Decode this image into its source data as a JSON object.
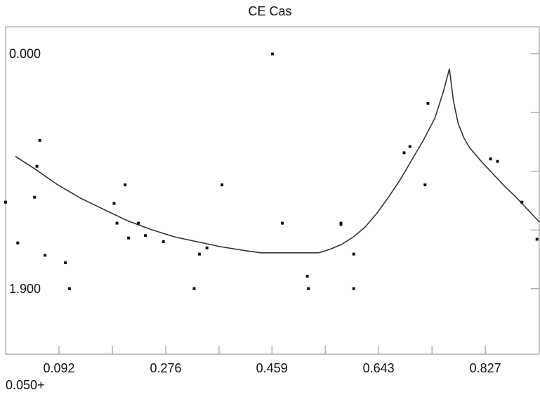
{
  "chart_data": {
    "type": "scatter",
    "title": "CE Cas",
    "xlabel": "",
    "ylabel": "",
    "xlim": [
      0.0,
      0.92
    ],
    "ylim": [
      -0.22,
      2.43
    ],
    "y_inverted": true,
    "x_tick_labels": [
      "0.092",
      "0.276",
      "0.459",
      "0.643",
      "0.827"
    ],
    "x_tick_values": [
      0.092,
      0.276,
      0.459,
      0.643,
      0.827
    ],
    "x_minor_ticks": [
      0.184,
      0.368,
      0.551,
      0.735
    ],
    "y_tick_labels": [
      "0.000",
      "1.900"
    ],
    "y_tick_values": [
      0.0,
      1.9
    ],
    "y_minor_ticks": [
      0.475,
      0.95,
      1.425
    ],
    "corner_note": "0.050+",
    "grid": false,
    "points": {
      "x": [
        0.0,
        0.021,
        0.05,
        0.054,
        0.059,
        0.068,
        0.103,
        0.11,
        0.187,
        0.192,
        0.206,
        0.212,
        0.229,
        0.241,
        0.272,
        0.325,
        0.334,
        0.347,
        0.373,
        0.46,
        0.477,
        0.52,
        0.522,
        0.578,
        0.578,
        0.6,
        0.6,
        0.687,
        0.697,
        0.723,
        0.728,
        0.836,
        0.848,
        0.89,
        0.916
      ],
      "y": [
        1.2,
        1.53,
        1.16,
        0.91,
        0.7,
        1.63,
        1.69,
        1.9,
        1.21,
        1.37,
        1.06,
        1.49,
        1.37,
        1.47,
        1.52,
        1.9,
        1.62,
        1.57,
        1.06,
        0.0,
        1.37,
        1.8,
        1.9,
        1.37,
        1.38,
        1.62,
        1.9,
        0.8,
        0.75,
        1.06,
        0.4,
        0.85,
        0.87,
        1.2,
        1.5
      ]
    },
    "fit_curve": {
      "x": [
        0.017,
        0.05,
        0.09,
        0.13,
        0.17,
        0.21,
        0.25,
        0.29,
        0.33,
        0.37,
        0.41,
        0.44,
        0.48,
        0.52,
        0.54,
        0.56,
        0.58,
        0.6,
        0.62,
        0.64,
        0.66,
        0.68,
        0.7,
        0.72,
        0.74,
        0.755,
        0.765,
        0.772,
        0.78,
        0.79,
        0.8,
        0.82,
        0.84,
        0.86,
        0.88,
        0.9,
        0.92
      ],
      "y": [
        0.83,
        0.93,
        1.06,
        1.17,
        1.26,
        1.35,
        1.42,
        1.48,
        1.52,
        1.56,
        1.59,
        1.61,
        1.61,
        1.61,
        1.61,
        1.58,
        1.54,
        1.48,
        1.4,
        1.29,
        1.16,
        1.02,
        0.86,
        0.7,
        0.52,
        0.3,
        0.12,
        0.38,
        0.56,
        0.68,
        0.76,
        0.87,
        0.97,
        1.07,
        1.16,
        1.26,
        1.36
      ]
    }
  }
}
